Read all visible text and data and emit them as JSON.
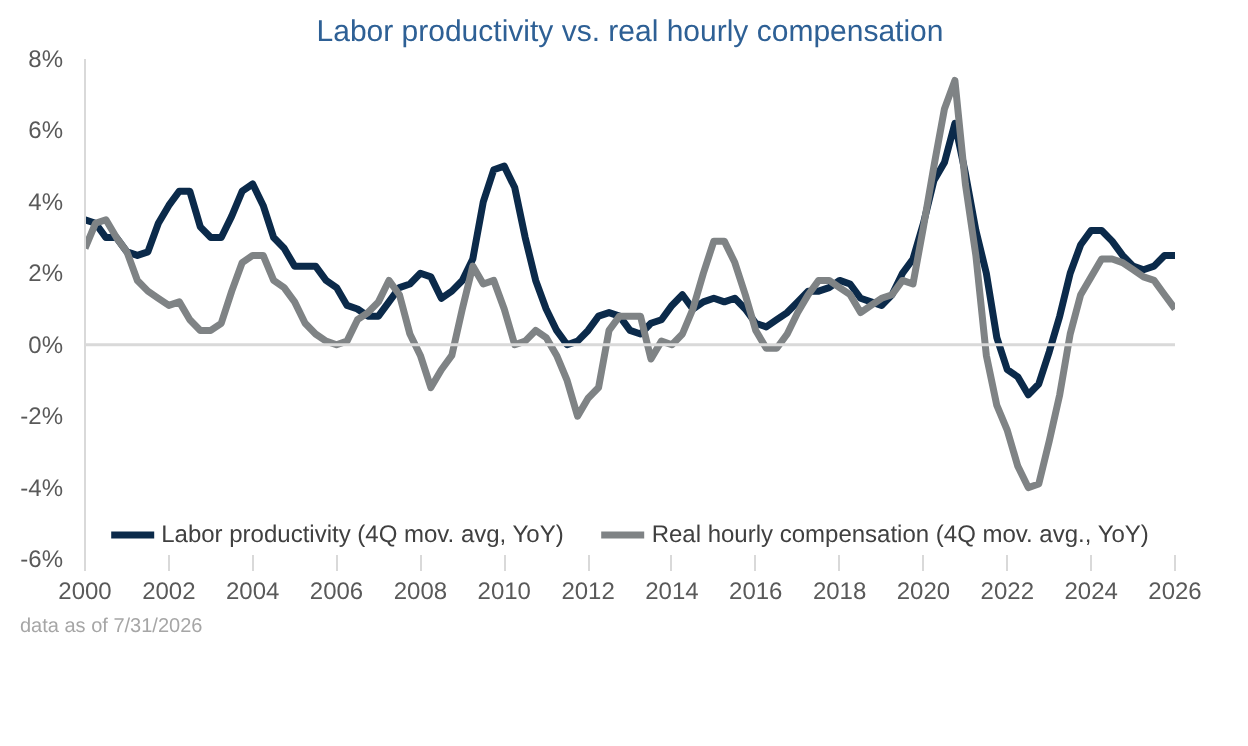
{
  "chart_data": {
    "type": "line",
    "title": "Labor productivity vs. real hourly compensation",
    "x": [
      2000,
      2000.25,
      2000.5,
      2000.75,
      2001,
      2001.25,
      2001.5,
      2001.75,
      2002,
      2002.25,
      2002.5,
      2002.75,
      2003,
      2003.25,
      2003.5,
      2003.75,
      2004,
      2004.25,
      2004.5,
      2004.75,
      2005,
      2005.25,
      2005.5,
      2005.75,
      2006,
      2006.25,
      2006.5,
      2006.75,
      2007,
      2007.25,
      2007.5,
      2007.75,
      2008,
      2008.25,
      2008.5,
      2008.75,
      2009,
      2009.25,
      2009.5,
      2009.75,
      2010,
      2010.25,
      2010.5,
      2010.75,
      2011,
      2011.25,
      2011.5,
      2011.75,
      2012,
      2012.25,
      2012.5,
      2012.75,
      2013,
      2013.25,
      2013.5,
      2013.75,
      2014,
      2014.25,
      2014.5,
      2014.75,
      2015,
      2015.25,
      2015.5,
      2015.75,
      2016,
      2016.25,
      2016.5,
      2016.75,
      2017,
      2017.25,
      2017.5,
      2017.75,
      2018,
      2018.25,
      2018.5,
      2018.75,
      2019,
      2019.25,
      2019.5,
      2019.75,
      2020,
      2020.25,
      2020.5,
      2020.75,
      2021,
      2021.25,
      2021.5,
      2021.75,
      2022,
      2022.25,
      2022.5,
      2022.75,
      2023,
      2023.25,
      2023.5,
      2023.75,
      2024,
      2024.25,
      2024.5,
      2024.75,
      2025,
      2025.25,
      2025.5,
      2025.75,
      2026
    ],
    "series": [
      {
        "name": "Labor productivity (4Q mov. avg, YoY)",
        "color": "#0b2a4a",
        "values": [
          3.5,
          3.4,
          3.0,
          3.0,
          2.6,
          2.5,
          2.6,
          3.4,
          3.9,
          4.3,
          4.3,
          3.3,
          3.0,
          3.0,
          3.6,
          4.3,
          4.5,
          3.9,
          3.0,
          2.7,
          2.2,
          2.2,
          2.2,
          1.8,
          1.6,
          1.1,
          1.0,
          0.8,
          0.8,
          1.2,
          1.6,
          1.7,
          2.0,
          1.9,
          1.3,
          1.5,
          1.8,
          2.4,
          4.0,
          4.9,
          5.0,
          4.4,
          3.0,
          1.8,
          1.0,
          0.4,
          0.0,
          0.1,
          0.4,
          0.8,
          0.9,
          0.8,
          0.4,
          0.3,
          0.6,
          0.7,
          1.1,
          1.4,
          1.0,
          1.2,
          1.3,
          1.2,
          1.3,
          1.0,
          0.6,
          0.5,
          0.7,
          0.9,
          1.2,
          1.5,
          1.5,
          1.6,
          1.8,
          1.7,
          1.3,
          1.2,
          1.1,
          1.4,
          2.0,
          2.4,
          3.4,
          4.6,
          5.1,
          6.2,
          4.8,
          3.2,
          2.0,
          0.2,
          -0.7,
          -0.9,
          -1.4,
          -1.1,
          -0.2,
          0.8,
          2.0,
          2.8,
          3.2,
          3.2,
          2.9,
          2.5,
          2.2,
          2.1,
          2.2,
          2.5,
          2.5
        ]
      },
      {
        "name": "Real hourly compensation (4Q mov. avg., YoY)",
        "color": "#7f8385",
        "values": [
          2.7,
          3.4,
          3.5,
          3.0,
          2.6,
          1.8,
          1.5,
          1.3,
          1.1,
          1.2,
          0.7,
          0.4,
          0.4,
          0.6,
          1.5,
          2.3,
          2.5,
          2.5,
          1.8,
          1.6,
          1.2,
          0.6,
          0.3,
          0.1,
          0.0,
          0.1,
          0.7,
          0.9,
          1.2,
          1.8,
          1.4,
          0.3,
          -0.3,
          -1.2,
          -0.7,
          -0.3,
          1.0,
          2.2,
          1.7,
          1.8,
          1.0,
          0.0,
          0.1,
          0.4,
          0.2,
          -0.3,
          -1.0,
          -2.0,
          -1.5,
          -1.2,
          0.4,
          0.8,
          0.8,
          0.8,
          -0.4,
          0.1,
          0.0,
          0.3,
          1.0,
          2.0,
          2.9,
          2.9,
          2.3,
          1.4,
          0.4,
          -0.1,
          -0.1,
          0.3,
          0.9,
          1.4,
          1.8,
          1.8,
          1.6,
          1.4,
          0.9,
          1.1,
          1.3,
          1.4,
          1.8,
          1.7,
          3.3,
          5.0,
          6.6,
          7.4,
          4.5,
          2.5,
          -0.3,
          -1.7,
          -2.4,
          -3.4,
          -4.0,
          -3.9,
          -2.7,
          -1.4,
          0.3,
          1.4,
          1.9,
          2.4,
          2.4,
          2.3,
          2.1,
          1.9,
          1.8,
          1.4,
          1.0
        ]
      }
    ],
    "xlim": [
      2000,
      2026
    ],
    "xticks": [
      2000,
      2002,
      2004,
      2006,
      2008,
      2010,
      2012,
      2014,
      2016,
      2018,
      2020,
      2022,
      2024,
      2026
    ],
    "ylim": [
      -6,
      8
    ],
    "yticks": [
      {
        "value": -6,
        "label": "-6%"
      },
      {
        "value": -4,
        "label": "-4%"
      },
      {
        "value": -2,
        "label": "-2%"
      },
      {
        "value": 0,
        "label": "0%"
      },
      {
        "value": 2,
        "label": "2%"
      },
      {
        "value": 4,
        "label": "4%"
      },
      {
        "value": 6,
        "label": "6%"
      },
      {
        "value": 8,
        "label": "8%"
      }
    ],
    "ref_lines": [
      {
        "axis": "y",
        "value": 0,
        "color": "#d9d9d9"
      }
    ],
    "grid": false,
    "legend": "bottom",
    "line_style": "solid",
    "marker": "none",
    "annotations": [
      "data as of 7/31/2026"
    ]
  }
}
